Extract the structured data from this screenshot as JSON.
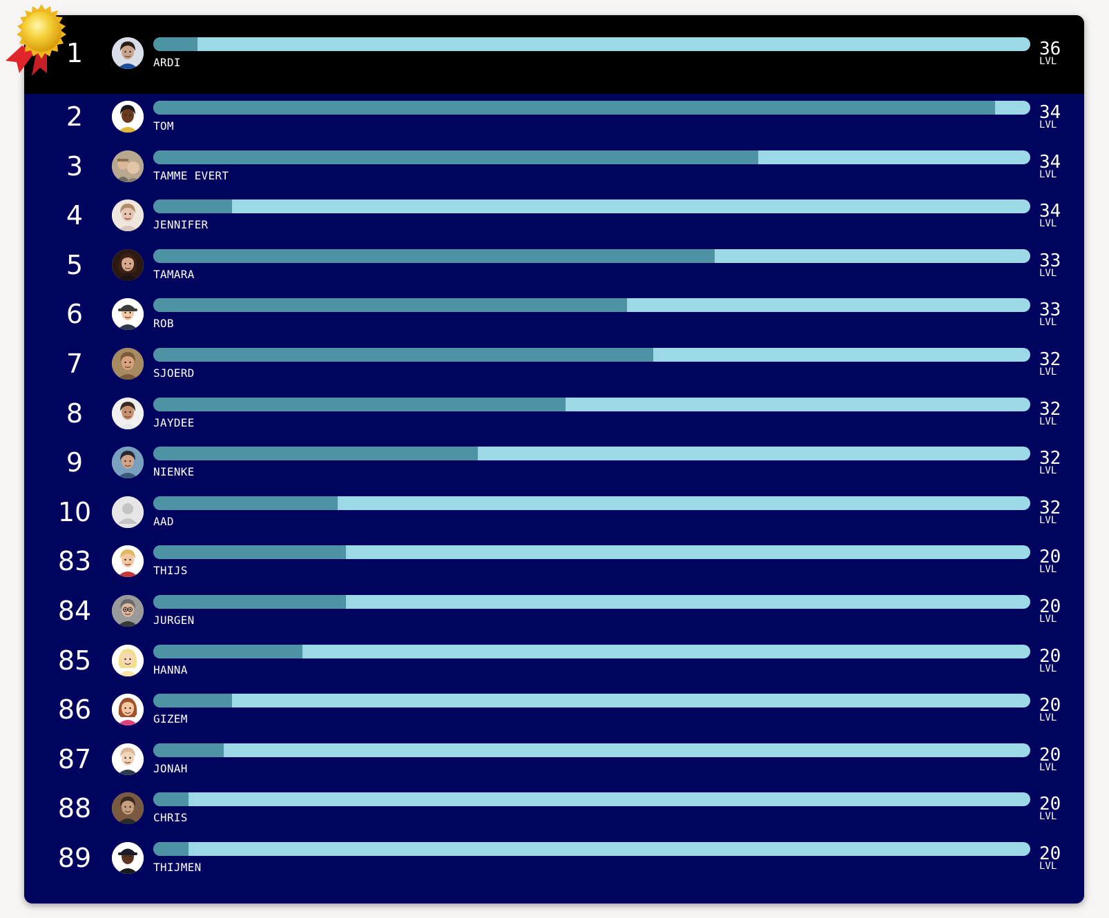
{
  "leaderboard": {
    "level_suffix": "LVL",
    "accent_colors": {
      "background": "#00045e",
      "top_row": "#000000",
      "track": "#9dd8e6",
      "fill": "#4d93a3",
      "text": "#ffffff"
    },
    "medal_icon": "gold-medal-ribbon-icon",
    "entries": [
      {
        "rank": "1",
        "name": "ARDI",
        "level": "36",
        "progress": 0.05,
        "avatar": "photo-man-dark-hair",
        "skin": "#c9a48a",
        "hair": "#2b2018",
        "shirt": "#1d4e9e",
        "bg": "#d9dee8"
      },
      {
        "rank": "2",
        "name": "TOM",
        "level": "34",
        "progress": 0.96,
        "avatar": "cartoon-dark-skin",
        "skin": "#6b3a1c",
        "hair": "#1a1a1a",
        "shirt": "#e0b63a",
        "bg": "#ffffff"
      },
      {
        "rank": "3",
        "name": "TAMME EVERT",
        "level": "34",
        "progress": 0.69,
        "avatar": "photo-group",
        "skin": "#d8b79a",
        "hair": "#8a7052",
        "shirt": "#6d6a5f",
        "bg": "#b7a88f"
      },
      {
        "rank": "4",
        "name": "JENNIFER",
        "level": "34",
        "progress": 0.09,
        "avatar": "photo-woman-light",
        "skin": "#e6c4b0",
        "hair": "#b08c6a",
        "shirt": "#d8c8bc",
        "bg": "#efe6de"
      },
      {
        "rank": "5",
        "name": "TAMARA",
        "level": "33",
        "progress": 0.64,
        "avatar": "photo-woman-curly",
        "skin": "#d7a88c",
        "hair": "#3a2216",
        "shirt": "#1c1412",
        "bg": "#2c1a12"
      },
      {
        "rank": "6",
        "name": "ROB",
        "level": "33",
        "progress": 0.54,
        "avatar": "cartoon-man-hat",
        "skin": "#f1c9a5",
        "hair": "#3c3c3c",
        "shirt": "#2f3b4a",
        "bg": "#ffffff"
      },
      {
        "rank": "7",
        "name": "SJOERD",
        "level": "32",
        "progress": 0.57,
        "avatar": "photo-man-smiling",
        "skin": "#d9a27e",
        "hair": "#7a5a3a",
        "shirt": "#7a5c3c",
        "bg": "#a88a60"
      },
      {
        "rank": "8",
        "name": "JAYDEE",
        "level": "32",
        "progress": 0.47,
        "avatar": "photo-man-bald",
        "skin": "#c99070",
        "hair": "#3a2a20",
        "shirt": "#e8e8e8",
        "bg": "#f0f0f0"
      },
      {
        "rank": "9",
        "name": "NIENKE",
        "level": "32",
        "progress": 0.37,
        "avatar": "photo-woman-outdoor",
        "skin": "#d2a488",
        "hair": "#2a2a30",
        "shirt": "#3a5a7a",
        "bg": "#7aa0c0"
      },
      {
        "rank": "10",
        "name": "AAD",
        "level": "32",
        "progress": 0.21,
        "avatar": "default-user-icon",
        "skin": "#c8c8c8",
        "hair": "#c8c8c8",
        "shirt": "#c8c8c8",
        "bg": "#e6e6e6"
      },
      {
        "rank": "83",
        "name": "THIJS",
        "level": "20",
        "progress": 0.22,
        "avatar": "cartoon-man-blond",
        "skin": "#f4c7a1",
        "hair": "#e0b860",
        "shirt": "#c03a3a",
        "bg": "#ffffff"
      },
      {
        "rank": "84",
        "name": "JURGEN",
        "level": "20",
        "progress": 0.22,
        "avatar": "photo-man-glasses",
        "skin": "#e0b8a0",
        "hair": "#6a6a6a",
        "shirt": "#3a3a3a",
        "bg": "#9a9a9a"
      },
      {
        "rank": "85",
        "name": "HANNA",
        "level": "20",
        "progress": 0.17,
        "avatar": "cartoon-woman-blonde",
        "skin": "#f6d7b8",
        "hair": "#f1e08a",
        "shirt": "#f6e6a6",
        "bg": "#ffffff"
      },
      {
        "rank": "86",
        "name": "GIZEM",
        "level": "20",
        "progress": 0.09,
        "avatar": "cartoon-woman-brown",
        "skin": "#f4c7a1",
        "hair": "#a0522d",
        "shirt": "#e0407a",
        "bg": "#ffffff"
      },
      {
        "rank": "87",
        "name": "JONAH",
        "level": "20",
        "progress": 0.08,
        "avatar": "cartoon-man-bald",
        "skin": "#f1d3b8",
        "hair": "#d8b898",
        "shirt": "#2f3b4a",
        "bg": "#ffffff"
      },
      {
        "rank": "88",
        "name": "CHRIS",
        "level": "20",
        "progress": 0.04,
        "avatar": "photo-man-shelves",
        "skin": "#c8a080",
        "hair": "#3a2a20",
        "shirt": "#2a2a2a",
        "bg": "#7a5a40"
      },
      {
        "rank": "89",
        "name": "THIJMEN",
        "level": "20",
        "progress": 0.04,
        "avatar": "cartoon-man-cap",
        "skin": "#5a3420",
        "hair": "#1a1a2a",
        "shirt": "#1a1a1a",
        "bg": "#ffffff"
      }
    ]
  }
}
